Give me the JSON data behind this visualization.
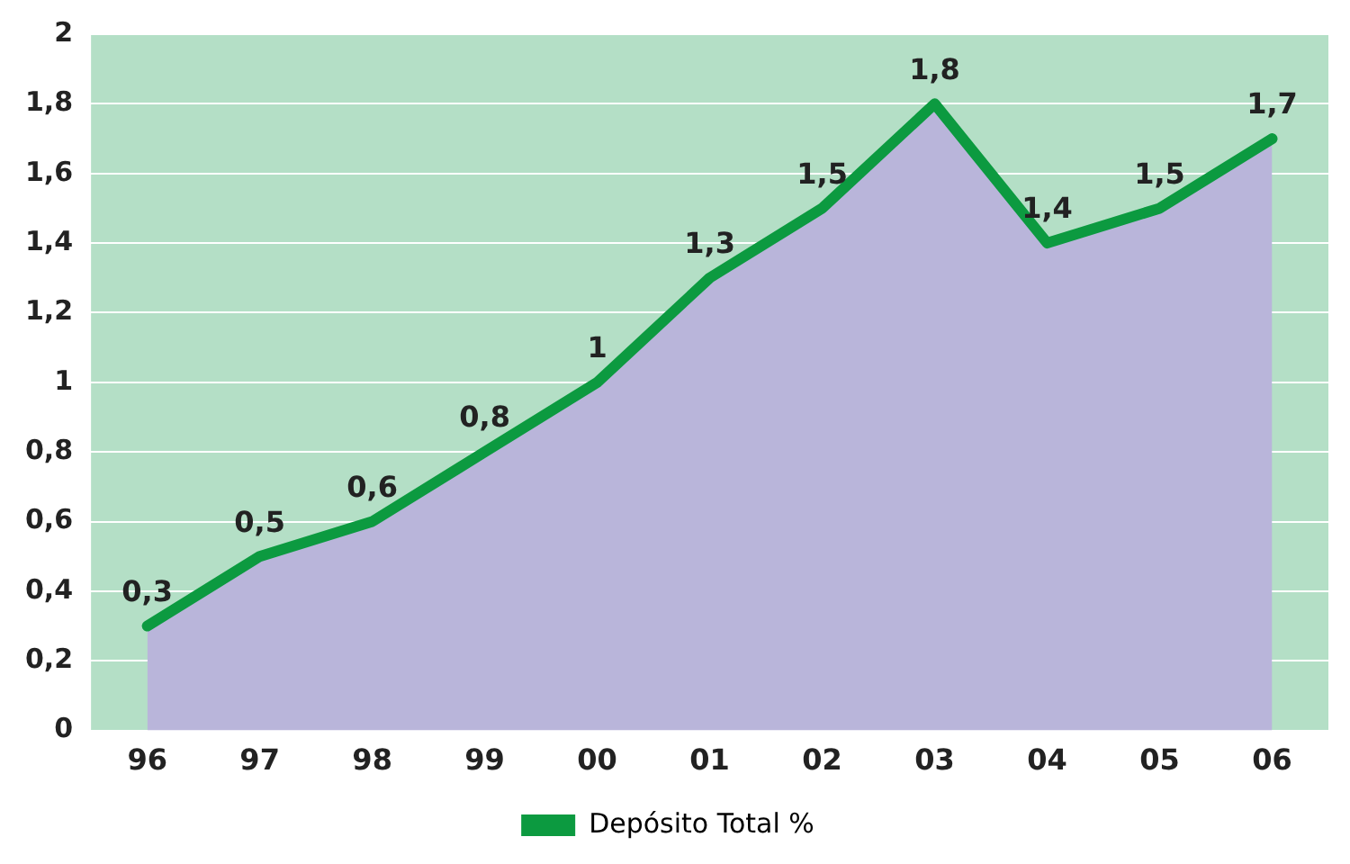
{
  "chart_data": {
    "type": "area",
    "categories": [
      "96",
      "97",
      "98",
      "99",
      "00",
      "01",
      "02",
      "03",
      "04",
      "05",
      "06"
    ],
    "series": [
      {
        "name": "Depósito Total %",
        "color": "#0c9a40",
        "values": [
          0.3,
          0.5,
          0.6,
          0.8,
          1,
          1.3,
          1.5,
          1.8,
          1.4,
          1.5,
          1.7
        ],
        "value_labels": [
          "0,3",
          "0,5",
          "0,6",
          "0,8",
          "1",
          "1,3",
          "1,5",
          "1,8",
          "1,4",
          "1,5",
          "1,7"
        ]
      }
    ],
    "bands": [
      {
        "axis": "y",
        "from": 0,
        "to": 2,
        "color": "#b4dfc6"
      }
    ],
    "ylim": [
      0,
      2
    ],
    "yticks": [
      0,
      {
        "value": 0.2,
        "label": "0,2"
      },
      {
        "value": 0.4,
        "label": "0,4"
      },
      {
        "value": 0.6,
        "label": "0,6"
      },
      {
        "value": 0.8,
        "label": "0,8"
      },
      1,
      {
        "value": 1.2,
        "label": "1,2"
      },
      {
        "value": 1.4,
        "label": "1,4"
      },
      {
        "value": 1.6,
        "label": "1,6"
      },
      {
        "value": 1.8,
        "label": "1,8"
      },
      2
    ],
    "grid": "y",
    "legend": "bottom",
    "marker": "none"
  }
}
